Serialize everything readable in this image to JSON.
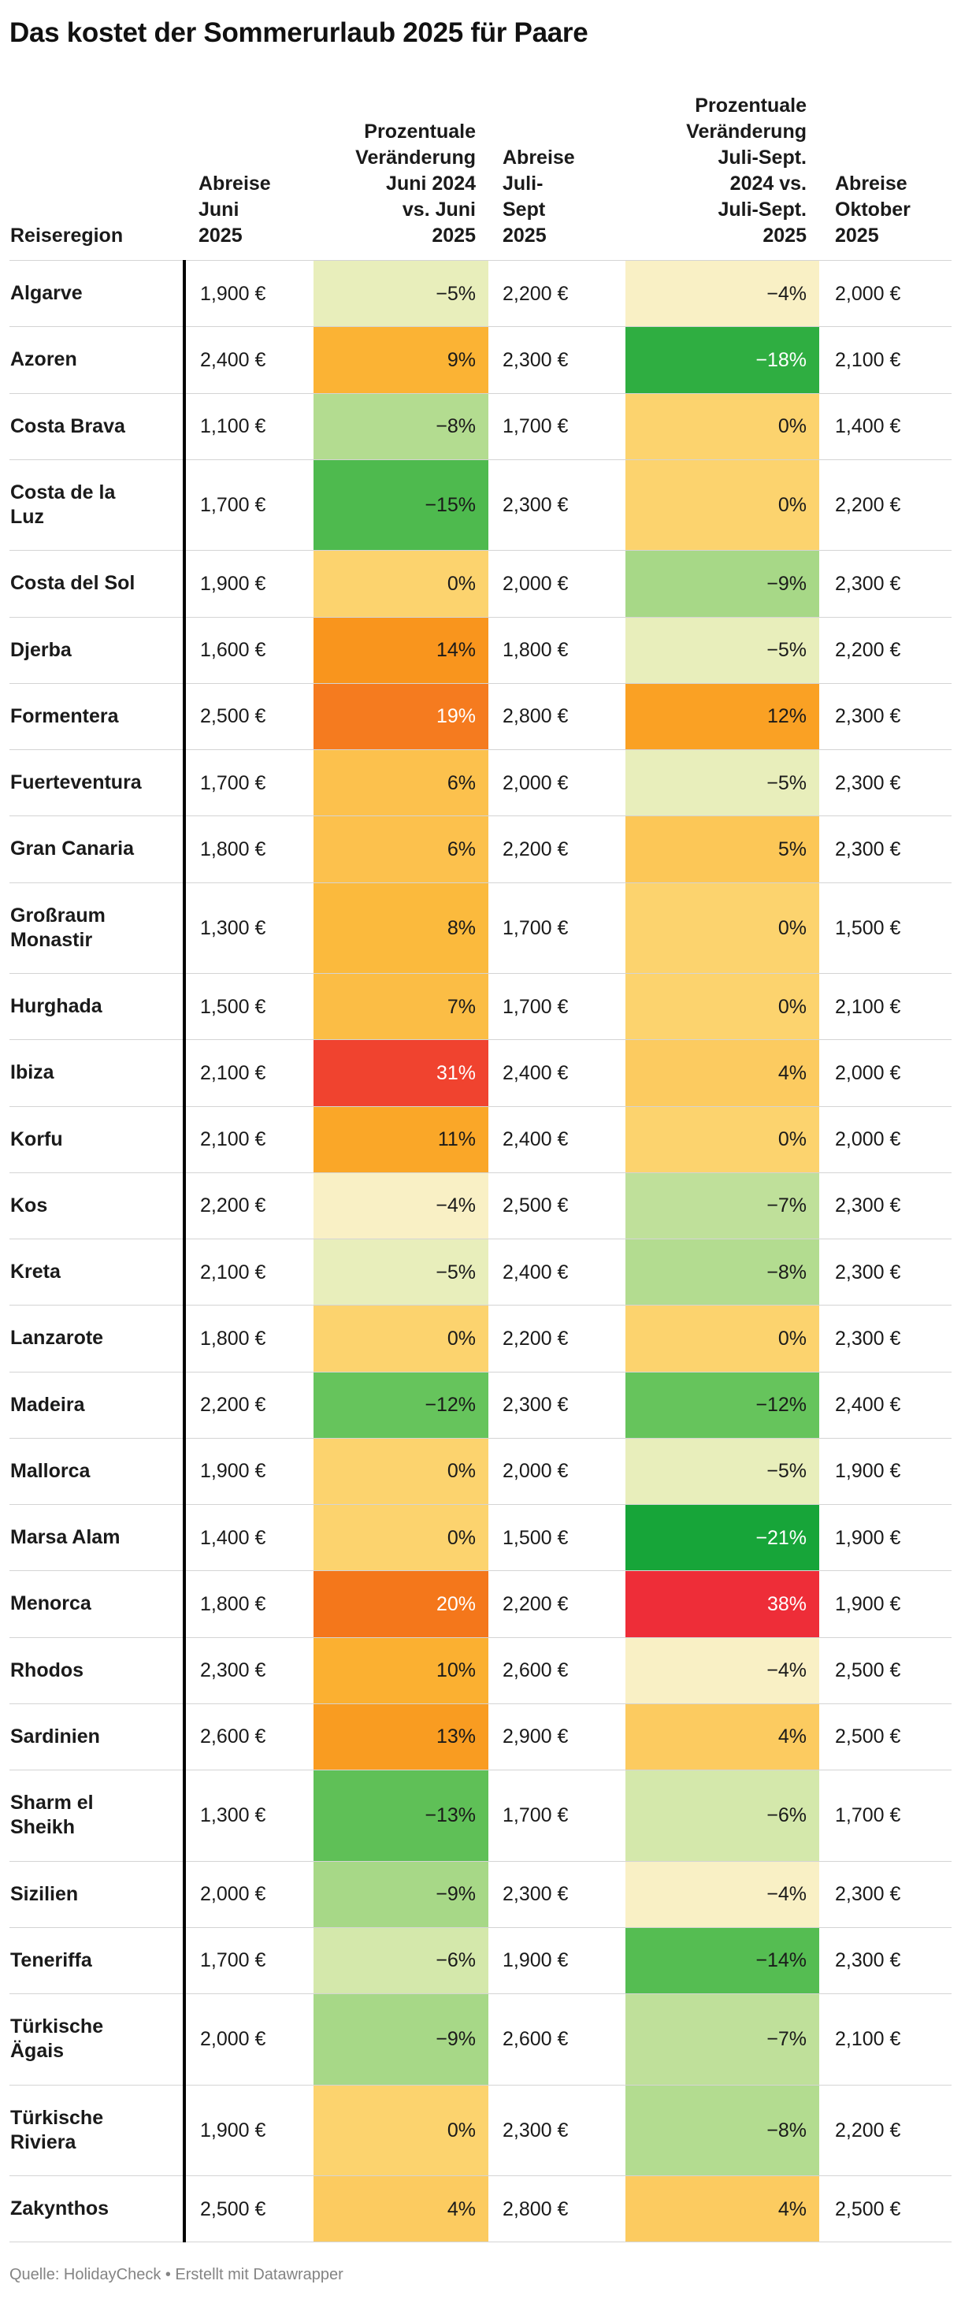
{
  "title": "Das kostet der Sommerurlaub 2025 für Paare",
  "source_note": "Quelle: HolidayCheck • Erstellt mit Datawrapper",
  "chart_data": {
    "type": "table",
    "columns": {
      "region": "Reiseregion",
      "june": "Abreise\nJuni\n2025",
      "june_change": "Prozentuale\nVeränderung\nJuni 2024\nvs. Juni\n2025",
      "julsep": "Abreise\nJuli-\nSept\n2025",
      "julsep_change": "Prozentuale\nVeränderung\nJuli-Sept.\n2024 vs.\nJuli-Sept.\n2025",
      "october": "Abreise\nOktober\n2025"
    },
    "rows": [
      {
        "region": "Algarve",
        "june": "1,900 €",
        "june_change": "−5%",
        "june_change_bg": "#e8eebb",
        "june_change_fg": "#1a1a1a",
        "julsep": "2,200 €",
        "julsep_change": "−4%",
        "julsep_change_bg": "#f9f0c5",
        "julsep_change_fg": "#1a1a1a",
        "october": "2,000 €"
      },
      {
        "region": "Azoren",
        "june": "2,400 €",
        "june_change": "9%",
        "june_change_bg": "#fbb334",
        "june_change_fg": "#1a1a1a",
        "julsep": "2,300 €",
        "julsep_change": "−18%",
        "julsep_change_bg": "#2fae41",
        "julsep_change_fg": "#ffffff",
        "october": "2,100 €"
      },
      {
        "region": "Costa Brava",
        "june": "1,100 €",
        "june_change": "−8%",
        "june_change_bg": "#b3dc90",
        "june_change_fg": "#1a1a1a",
        "julsep": "1,700 €",
        "julsep_change": "0%",
        "julsep_change_bg": "#fcd36e",
        "julsep_change_fg": "#1a1a1a",
        "october": "1,400 €"
      },
      {
        "region": "Costa de la\nLuz",
        "june": "1,700 €",
        "june_change": "−15%",
        "june_change_bg": "#4eba4e",
        "june_change_fg": "#1a1a1a",
        "julsep": "2,300 €",
        "julsep_change": "0%",
        "julsep_change_bg": "#fcd36e",
        "julsep_change_fg": "#1a1a1a",
        "october": "2,200 €"
      },
      {
        "region": "Costa del Sol",
        "june": "1,900 €",
        "june_change": "0%",
        "june_change_bg": "#fcd36e",
        "june_change_fg": "#1a1a1a",
        "julsep": "2,000 €",
        "julsep_change": "−9%",
        "julsep_change_bg": "#a7d887",
        "julsep_change_fg": "#1a1a1a",
        "october": "2,300 €"
      },
      {
        "region": "Djerba",
        "june": "1,600 €",
        "june_change": "14%",
        "june_change_bg": "#f9951d",
        "june_change_fg": "#1a1a1a",
        "julsep": "1,800 €",
        "julsep_change": "−5%",
        "julsep_change_bg": "#e8eebb",
        "julsep_change_fg": "#1a1a1a",
        "october": "2,200 €"
      },
      {
        "region": "Formentera",
        "june": "2,500 €",
        "june_change": "19%",
        "june_change_bg": "#f57b1f",
        "june_change_fg": "#ffffff",
        "julsep": "2,800 €",
        "julsep_change": "12%",
        "julsep_change_bg": "#faa124",
        "julsep_change_fg": "#1a1a1a",
        "october": "2,300 €"
      },
      {
        "region": "Fuerteventura",
        "june": "1,700 €",
        "june_change": "6%",
        "june_change_bg": "#fcc14d",
        "june_change_fg": "#1a1a1a",
        "julsep": "2,000 €",
        "julsep_change": "−5%",
        "julsep_change_bg": "#e8eebb",
        "julsep_change_fg": "#1a1a1a",
        "october": "2,300 €"
      },
      {
        "region": "Gran Canaria",
        "june": "1,800 €",
        "june_change": "6%",
        "june_change_bg": "#fcc14d",
        "june_change_fg": "#1a1a1a",
        "julsep": "2,200 €",
        "julsep_change": "5%",
        "julsep_change_bg": "#fcc757",
        "julsep_change_fg": "#1a1a1a",
        "october": "2,300 €"
      },
      {
        "region": "Großraum\nMonastir",
        "june": "1,300 €",
        "june_change": "8%",
        "june_change_bg": "#fbba3d",
        "june_change_fg": "#1a1a1a",
        "julsep": "1,700 €",
        "julsep_change": "0%",
        "julsep_change_bg": "#fcd36e",
        "julsep_change_fg": "#1a1a1a",
        "october": "1,500 €"
      },
      {
        "region": "Hurghada",
        "june": "1,500 €",
        "june_change": "7%",
        "june_change_bg": "#fbbd45",
        "june_change_fg": "#1a1a1a",
        "julsep": "1,700 €",
        "julsep_change": "0%",
        "julsep_change_bg": "#fcd36e",
        "julsep_change_fg": "#1a1a1a",
        "october": "2,100 €"
      },
      {
        "region": "Ibiza",
        "june": "2,100 €",
        "june_change": "31%",
        "june_change_bg": "#f0432f",
        "june_change_fg": "#ffffff",
        "julsep": "2,400 €",
        "julsep_change": "4%",
        "julsep_change_bg": "#fccb60",
        "julsep_change_fg": "#1a1a1a",
        "october": "2,000 €"
      },
      {
        "region": "Korfu",
        "june": "2,100 €",
        "june_change": "11%",
        "june_change_bg": "#faa728",
        "june_change_fg": "#1a1a1a",
        "julsep": "2,400 €",
        "julsep_change": "0%",
        "julsep_change_bg": "#fcd36e",
        "julsep_change_fg": "#1a1a1a",
        "october": "2,000 €"
      },
      {
        "region": "Kos",
        "june": "2,200 €",
        "june_change": "−4%",
        "june_change_bg": "#f9f0c5",
        "june_change_fg": "#1a1a1a",
        "julsep": "2,500 €",
        "julsep_change": "−7%",
        "julsep_change_bg": "#bfe09a",
        "julsep_change_fg": "#1a1a1a",
        "october": "2,300 €"
      },
      {
        "region": "Kreta",
        "june": "2,100 €",
        "june_change": "−5%",
        "june_change_bg": "#e8eebb",
        "june_change_fg": "#1a1a1a",
        "julsep": "2,400 €",
        "julsep_change": "−8%",
        "julsep_change_bg": "#b3dc90",
        "julsep_change_fg": "#1a1a1a",
        "october": "2,300 €"
      },
      {
        "region": "Lanzarote",
        "june": "1,800 €",
        "june_change": "0%",
        "june_change_bg": "#fcd36e",
        "june_change_fg": "#1a1a1a",
        "julsep": "2,200 €",
        "julsep_change": "0%",
        "julsep_change_bg": "#fcd36e",
        "julsep_change_fg": "#1a1a1a",
        "october": "2,300 €"
      },
      {
        "region": "Madeira",
        "june": "2,200 €",
        "june_change": "−12%",
        "june_change_bg": "#66c45c",
        "june_change_fg": "#1a1a1a",
        "julsep": "2,300 €",
        "julsep_change": "−12%",
        "julsep_change_bg": "#66c45c",
        "julsep_change_fg": "#1a1a1a",
        "october": "2,400 €"
      },
      {
        "region": "Mallorca",
        "june": "1,900 €",
        "june_change": "0%",
        "june_change_bg": "#fcd36e",
        "june_change_fg": "#1a1a1a",
        "julsep": "2,000 €",
        "julsep_change": "−5%",
        "julsep_change_bg": "#e8eebb",
        "julsep_change_fg": "#1a1a1a",
        "october": "1,900 €"
      },
      {
        "region": "Marsa Alam",
        "june": "1,400 €",
        "june_change": "0%",
        "june_change_bg": "#fcd36e",
        "june_change_fg": "#1a1a1a",
        "julsep": "1,500 €",
        "julsep_change": "−21%",
        "julsep_change_bg": "#17a539",
        "julsep_change_fg": "#ffffff",
        "october": "1,900 €"
      },
      {
        "region": "Menorca",
        "june": "1,800 €",
        "june_change": "20%",
        "june_change_bg": "#f4771b",
        "june_change_fg": "#ffffff",
        "julsep": "2,200 €",
        "julsep_change": "38%",
        "julsep_change_bg": "#ee2d38",
        "julsep_change_fg": "#ffffff",
        "october": "1,900 €"
      },
      {
        "region": "Rhodos",
        "june": "2,300 €",
        "june_change": "10%",
        "june_change_bg": "#fbb031",
        "june_change_fg": "#1a1a1a",
        "julsep": "2,600 €",
        "julsep_change": "−4%",
        "julsep_change_bg": "#f9f0c5",
        "julsep_change_fg": "#1a1a1a",
        "october": "2,500 €"
      },
      {
        "region": "Sardinien",
        "june": "2,600 €",
        "june_change": "13%",
        "june_change_bg": "#f99c21",
        "june_change_fg": "#1a1a1a",
        "julsep": "2,900 €",
        "julsep_change": "4%",
        "julsep_change_bg": "#fccb60",
        "julsep_change_fg": "#1a1a1a",
        "october": "2,500 €"
      },
      {
        "region": "Sharm el\nSheikh",
        "june": "1,300 €",
        "june_change": "−13%",
        "june_change_bg": "#5fc057",
        "june_change_fg": "#1a1a1a",
        "julsep": "1,700 €",
        "julsep_change": "−6%",
        "julsep_change_bg": "#d4e8ab",
        "julsep_change_fg": "#1a1a1a",
        "october": "1,700 €"
      },
      {
        "region": "Sizilien",
        "june": "2,000 €",
        "june_change": "−9%",
        "june_change_bg": "#a7d887",
        "june_change_fg": "#1a1a1a",
        "julsep": "2,300 €",
        "julsep_change": "−4%",
        "julsep_change_bg": "#f9f0c5",
        "julsep_change_fg": "#1a1a1a",
        "october": "2,300 €"
      },
      {
        "region": "Teneriffa",
        "june": "1,700 €",
        "june_change": "−6%",
        "june_change_bg": "#d4e8ab",
        "june_change_fg": "#1a1a1a",
        "julsep": "1,900 €",
        "julsep_change": "−14%",
        "julsep_change_bg": "#55bd52",
        "julsep_change_fg": "#1a1a1a",
        "october": "2,300 €"
      },
      {
        "region": "Türkische\nÄgais",
        "june": "2,000 €",
        "june_change": "−9%",
        "june_change_bg": "#a7d887",
        "june_change_fg": "#1a1a1a",
        "julsep": "2,600 €",
        "julsep_change": "−7%",
        "julsep_change_bg": "#bfe09a",
        "julsep_change_fg": "#1a1a1a",
        "october": "2,100 €"
      },
      {
        "region": "Türkische\nRiviera",
        "june": "1,900 €",
        "june_change": "0%",
        "june_change_bg": "#fcd36e",
        "june_change_fg": "#1a1a1a",
        "julsep": "2,300 €",
        "julsep_change": "−8%",
        "julsep_change_bg": "#b3dc90",
        "julsep_change_fg": "#1a1a1a",
        "october": "2,200 €"
      },
      {
        "region": "Zakynthos",
        "june": "2,500 €",
        "june_change": "4%",
        "june_change_bg": "#fccb60",
        "june_change_fg": "#1a1a1a",
        "julsep": "2,800 €",
        "julsep_change": "4%",
        "julsep_change_bg": "#fccb60",
        "julsep_change_fg": "#1a1a1a",
        "october": "2,500 €"
      }
    ]
  }
}
